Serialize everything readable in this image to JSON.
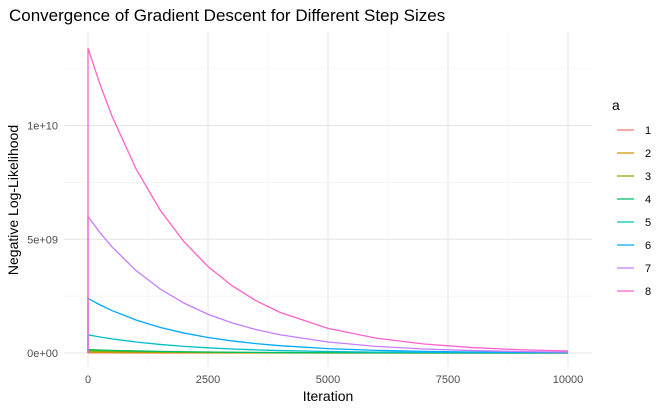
{
  "chart_data": {
    "type": "line",
    "title": "Convergence of Gradient Descent for Different Step Sizes",
    "xlabel": "Iteration",
    "ylabel": "Negative Log-Likelihood",
    "xlim": [
      0,
      10000
    ],
    "ylim": [
      0,
      13500000000
    ],
    "x_ticks": [
      0,
      2500,
      5000,
      7500,
      10000
    ],
    "x_tick_labels": [
      "0",
      "2500",
      "5000",
      "7500",
      "10000"
    ],
    "y_ticks": [
      0,
      5000000000,
      10000000000
    ],
    "y_tick_labels": [
      "0e+00",
      "5e+09",
      "1e+10"
    ],
    "grid": true,
    "legend": {
      "title": "a",
      "position": "right"
    },
    "x": [
      0,
      250,
      500,
      1000,
      1500,
      2000,
      2500,
      3000,
      3500,
      4000,
      5000,
      6000,
      7000,
      8000,
      9000,
      10000
    ],
    "series": [
      {
        "name": "1",
        "color": "#F8766D",
        "values": [
          5000000,
          4400000,
          3900000,
          3000000,
          2400000,
          1900000,
          1500000,
          1200000,
          900000,
          700000,
          450000,
          280000,
          170000,
          100000,
          60000,
          40000
        ]
      },
      {
        "name": "2",
        "color": "#CD9600",
        "values": [
          30000000,
          26500000,
          23000000,
          18000000,
          14000000,
          11000000,
          8500000,
          6600000,
          5100000,
          4000000,
          2400000,
          1500000,
          900000,
          550000,
          340000,
          210000
        ]
      },
      {
        "name": "3",
        "color": "#7CAE00",
        "values": [
          90000000,
          79000000,
          70000000,
          54000000,
          42000000,
          33000000,
          25000000,
          20000000,
          15000000,
          12000000,
          7200000,
          4300000,
          2600000,
          1600000,
          1000000,
          600000
        ]
      },
      {
        "name": "4",
        "color": "#00BE67",
        "values": [
          150000000,
          133000000,
          117000000,
          91000000,
          71000000,
          55000000,
          43000000,
          33000000,
          26000000,
          20000000,
          12000000,
          7300000,
          4400000,
          2700000,
          1600000,
          1000000
        ]
      },
      {
        "name": "5",
        "color": "#00BFC4",
        "values": [
          800000000,
          705000000,
          622000000,
          484000000,
          377000000,
          293000000,
          228000000,
          177000000,
          138000000,
          107000000,
          65000000,
          39000000,
          24000000,
          14000000,
          9000000,
          5000000
        ]
      },
      {
        "name": "6",
        "color": "#00A9FF",
        "values": [
          2400000000,
          2116000000,
          1866000000,
          1451000000,
          1128000000,
          877000000,
          682000000,
          530000000,
          412000000,
          321000000,
          194000000,
          117000000,
          71000000,
          43000000,
          26000000,
          16000000
        ]
      },
      {
        "name": "7",
        "color": "#C77CFF",
        "values": [
          6000000000,
          5290000000,
          4665000000,
          3626000000,
          2819000000,
          2192000000,
          1704000000,
          1325000000,
          1030000000,
          801000000,
          484000000,
          293000000,
          177000000,
          107000000,
          65000000,
          39000000
        ]
      },
      {
        "name": "8",
        "color": "#FF61CC",
        "values": [
          13400000000,
          11814000000,
          10417000000,
          8097000000,
          6295000000,
          4894000000,
          3805000000,
          2958000000,
          2300000000,
          1788000000,
          1081000000,
          653000000,
          395000000,
          239000000,
          144000000,
          87000000
        ]
      }
    ]
  }
}
